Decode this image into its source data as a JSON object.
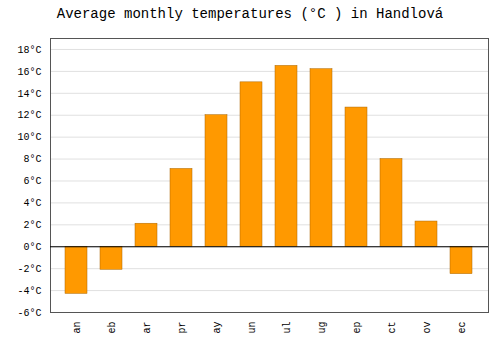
{
  "chart_data": {
    "type": "bar",
    "title": "Average monthly temperatures (°C ) in Handlová",
    "categories": [
      "an",
      "eb",
      "ar",
      "pr",
      "ay",
      "un",
      "ul",
      "ug",
      "ep",
      "ct",
      "ov",
      "ec"
    ],
    "values": [
      -4.3,
      -2.1,
      2.1,
      7.1,
      12.0,
      15.0,
      16.5,
      16.2,
      12.7,
      8.0,
      2.3,
      -2.5
    ],
    "color": "#FF9900",
    "ylim": [
      -6,
      19
    ],
    "yticks": [
      {
        "value": -6,
        "label": "-6°C"
      },
      {
        "value": -4,
        "label": "-4°C"
      },
      {
        "value": -2,
        "label": "-2°C"
      },
      {
        "value": 0,
        "label": "0°C"
      },
      {
        "value": 2,
        "label": "2°C"
      },
      {
        "value": 4,
        "label": "4°C"
      },
      {
        "value": 6,
        "label": "6°C"
      },
      {
        "value": 8,
        "label": "8°C"
      },
      {
        "value": 10,
        "label": "10°C"
      },
      {
        "value": 12,
        "label": "12°C"
      },
      {
        "value": 14,
        "label": "14°C"
      },
      {
        "value": 16,
        "label": "16°C"
      },
      {
        "value": 18,
        "label": "18°C"
      }
    ],
    "grid": true
  }
}
